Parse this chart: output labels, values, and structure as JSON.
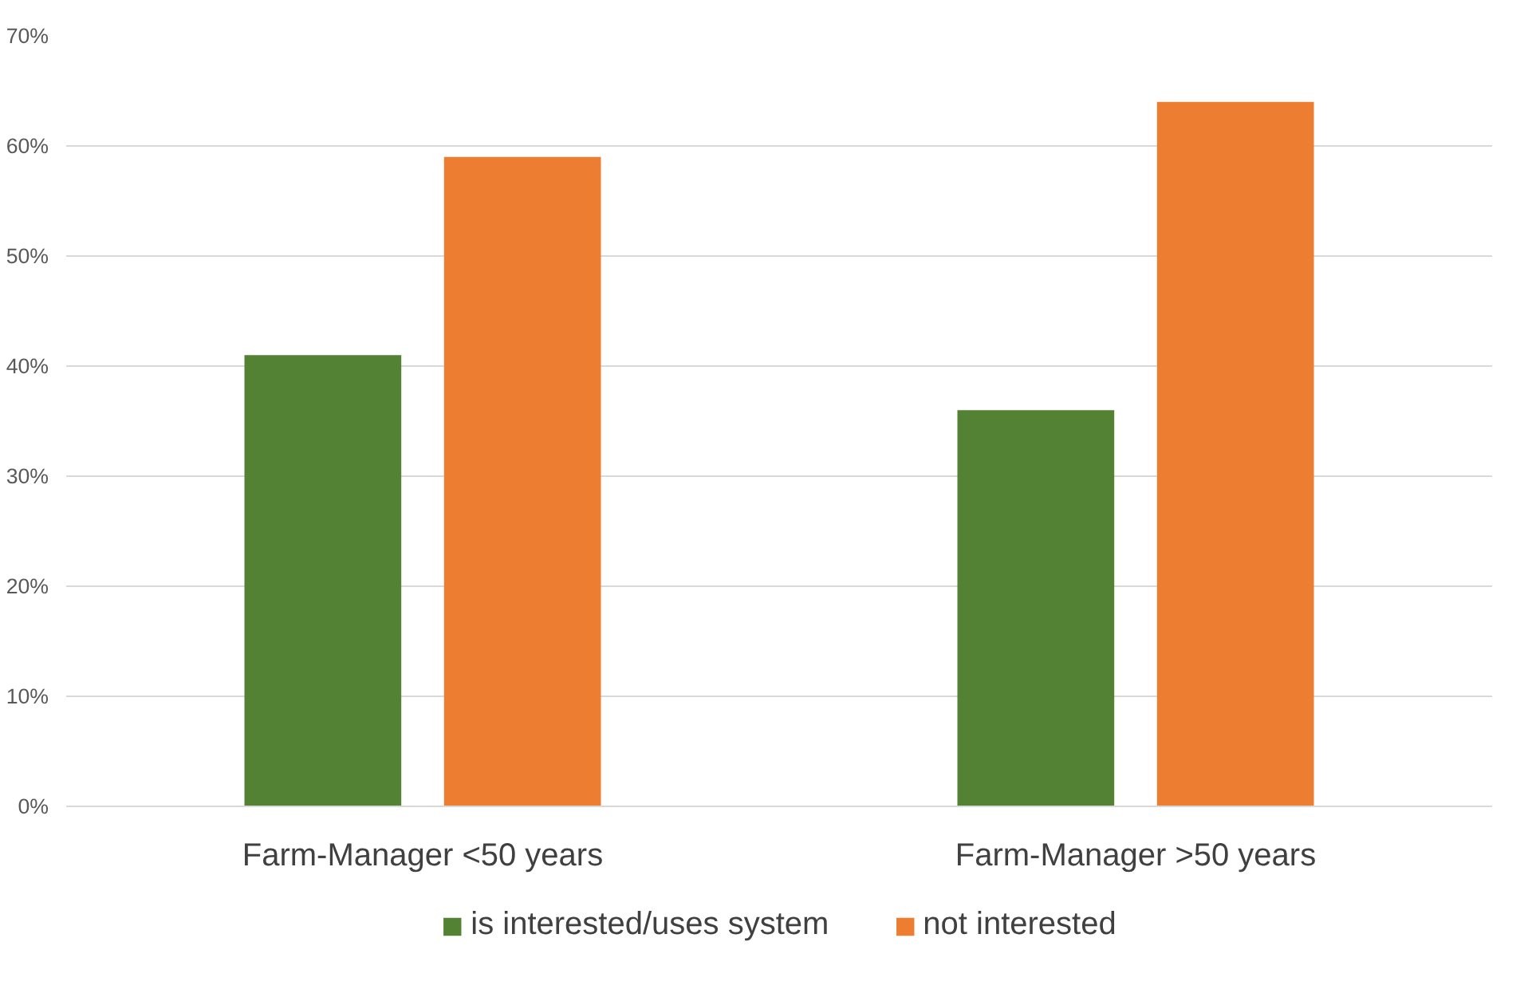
{
  "chart_data": {
    "type": "bar",
    "categories": [
      "Farm-Manager <50 years",
      "Farm-Manager >50 years"
    ],
    "series": [
      {
        "name": "is interested/uses system",
        "color": "#548235",
        "values": [
          41,
          36
        ]
      },
      {
        "name": "not interested",
        "color": "#ed7d31",
        "values": [
          59,
          64
        ]
      }
    ],
    "ylim": [
      0,
      70
    ],
    "yticks": [
      {
        "value": 0,
        "label": "0%"
      },
      {
        "value": 10,
        "label": "10%"
      },
      {
        "value": 20,
        "label": "20%"
      },
      {
        "value": 30,
        "label": "30%"
      },
      {
        "value": 40,
        "label": "40%"
      },
      {
        "value": 50,
        "label": "50%"
      },
      {
        "value": 60,
        "label": "60%"
      },
      {
        "value": 70,
        "label": "70%"
      }
    ],
    "grid": "y",
    "legend": "bottom"
  }
}
